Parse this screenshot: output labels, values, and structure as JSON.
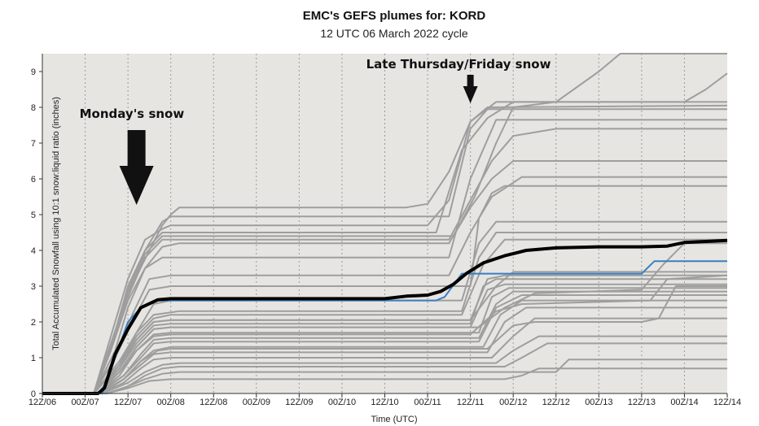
{
  "chart_data": {
    "type": "line",
    "title": "EMC's GEFS plumes for: KORD",
    "subtitle": "12 UTC 06 March 2022 cycle",
    "xlabel": "Time (UTC)",
    "ylabel": "Total Accumulated Snowfall using 10:1 snow:liquid ratio (inches)",
    "x_tick_labels": [
      "12Z/06",
      "00Z/07",
      "12Z/07",
      "00Z/08",
      "12Z/08",
      "00Z/09",
      "12Z/09",
      "00Z/10",
      "12Z/10",
      "00Z/11",
      "12Z/11",
      "00Z/12",
      "12Z/12",
      "00Z/13",
      "12Z/13",
      "00Z/14",
      "12Z/14"
    ],
    "y_ticks": [
      0,
      1,
      2,
      3,
      4,
      5,
      6,
      7,
      8,
      9
    ],
    "xlim": [
      0,
      16
    ],
    "ylim": [
      0,
      9.5
    ],
    "grid": "vertical dotted",
    "annotations": [
      {
        "text": "Monday's snow",
        "x": 2.2,
        "arrow_to": [
          2.2,
          5.3
        ]
      },
      {
        "text": "Late Thursday/Friday snow",
        "x": 10.0,
        "arrow_to": [
          10.0,
          8.1
        ]
      }
    ],
    "members_color": "#9e9e9e",
    "mean_color": "#000000",
    "control_color": "#3a7fc1",
    "members": [
      [
        [
          0,
          0
        ],
        [
          1.2,
          0
        ],
        [
          1.6,
          1.6
        ],
        [
          2.0,
          3.2
        ],
        [
          2.4,
          4.3
        ],
        [
          2.8,
          4.6
        ],
        [
          3.0,
          4.7
        ],
        [
          9.0,
          4.7
        ],
        [
          9.5,
          5.4
        ],
        [
          10.0,
          7.6
        ],
        [
          10.6,
          8.15
        ],
        [
          16,
          8.15
        ]
      ],
      [
        [
          0,
          0
        ],
        [
          1.2,
          0
        ],
        [
          1.6,
          1.2
        ],
        [
          2.0,
          2.8
        ],
        [
          2.5,
          4.0
        ],
        [
          2.8,
          4.7
        ],
        [
          3.0,
          5.0
        ],
        [
          3.2,
          5.2
        ],
        [
          8.5,
          5.2
        ],
        [
          9.0,
          5.3
        ],
        [
          9.5,
          6.2
        ],
        [
          10.0,
          7.6
        ],
        [
          10.4,
          8.0
        ],
        [
          16,
          8.05
        ]
      ],
      [
        [
          0,
          0
        ],
        [
          1.2,
          0
        ],
        [
          1.6,
          1.3
        ],
        [
          2.0,
          3.0
        ],
        [
          2.4,
          4.0
        ],
        [
          2.8,
          4.8
        ],
        [
          3.0,
          4.95
        ],
        [
          9.5,
          4.95
        ],
        [
          10.0,
          7.4
        ],
        [
          10.4,
          7.95
        ],
        [
          16,
          7.95
        ]
      ],
      [
        [
          0,
          0
        ],
        [
          1.2,
          0
        ],
        [
          1.6,
          1.2
        ],
        [
          2.0,
          2.9
        ],
        [
          2.4,
          4.0
        ],
        [
          2.8,
          4.5
        ],
        [
          9.2,
          4.5
        ],
        [
          9.8,
          6.8
        ],
        [
          10.4,
          7.7
        ],
        [
          11,
          8.15
        ],
        [
          12,
          8.15
        ],
        [
          13,
          9.0
        ],
        [
          13.5,
          9.5
        ],
        [
          16,
          9.5
        ]
      ],
      [
        [
          0,
          0
        ],
        [
          1.2,
          0
        ],
        [
          1.6,
          1.2
        ],
        [
          2.0,
          2.6
        ],
        [
          2.4,
          3.5
        ],
        [
          2.8,
          3.8
        ],
        [
          9.5,
          3.8
        ],
        [
          10.0,
          6.0
        ],
        [
          10.6,
          7.65
        ],
        [
          16,
          7.65
        ]
      ],
      [
        [
          0,
          0
        ],
        [
          1.2,
          0
        ],
        [
          1.7,
          1.2
        ],
        [
          2.0,
          2.4
        ],
        [
          2.4,
          3.5
        ],
        [
          2.8,
          4.1
        ],
        [
          3.2,
          4.2
        ],
        [
          9.5,
          4.2
        ],
        [
          10.0,
          5.2
        ],
        [
          10.5,
          6.0
        ],
        [
          11.0,
          6.5
        ],
        [
          16,
          6.5
        ]
      ],
      [
        [
          0,
          0
        ],
        [
          1.2,
          0
        ],
        [
          1.7,
          1.0
        ],
        [
          2.1,
          2.2
        ],
        [
          2.5,
          3.2
        ],
        [
          3.0,
          3.3
        ],
        [
          9.5,
          3.3
        ],
        [
          10.0,
          4.5
        ],
        [
          10.5,
          5.5
        ],
        [
          11.2,
          6.05
        ],
        [
          16,
          6.05
        ]
      ],
      [
        [
          0,
          0
        ],
        [
          1.2,
          0
        ],
        [
          1.7,
          1.0
        ],
        [
          2.1,
          2.0
        ],
        [
          2.5,
          2.9
        ],
        [
          3.0,
          3.0
        ],
        [
          10.0,
          3.0
        ],
        [
          10.2,
          4.9
        ],
        [
          10.5,
          5.6
        ],
        [
          10.8,
          5.8
        ],
        [
          16,
          5.8
        ]
      ],
      [
        [
          0,
          0
        ],
        [
          1.2,
          0
        ],
        [
          1.8,
          0.9
        ],
        [
          2.2,
          1.7
        ],
        [
          2.6,
          2.5
        ],
        [
          3.0,
          2.6
        ],
        [
          9.8,
          2.6
        ],
        [
          10.2,
          4.2
        ],
        [
          10.6,
          4.8
        ],
        [
          16,
          4.8
        ]
      ],
      [
        [
          0,
          0
        ],
        [
          1.2,
          0
        ],
        [
          1.8,
          0.8
        ],
        [
          2.2,
          1.7
        ],
        [
          2.6,
          2.2
        ],
        [
          3.2,
          2.3
        ],
        [
          9.8,
          2.3
        ],
        [
          10.2,
          3.8
        ],
        [
          10.6,
          4.5
        ],
        [
          16,
          4.5
        ]
      ],
      [
        [
          0,
          0
        ],
        [
          1.2,
          0
        ],
        [
          1.8,
          0.8
        ],
        [
          2.2,
          1.6
        ],
        [
          2.6,
          2.1
        ],
        [
          3.0,
          2.2
        ],
        [
          9.8,
          2.2
        ],
        [
          10.3,
          3.6
        ],
        [
          10.8,
          4.3
        ],
        [
          16,
          4.3
        ]
      ],
      [
        [
          0,
          0
        ],
        [
          1.3,
          0
        ],
        [
          1.8,
          0.8
        ],
        [
          2.2,
          1.5
        ],
        [
          2.6,
          2.0
        ],
        [
          3.0,
          2.05
        ],
        [
          10.0,
          2.05
        ],
        [
          10.4,
          3.2
        ],
        [
          10.8,
          3.3
        ],
        [
          16,
          3.3
        ]
      ],
      [
        [
          0,
          0
        ],
        [
          1.3,
          0
        ],
        [
          1.8,
          0.7
        ],
        [
          2.2,
          1.4
        ],
        [
          2.6,
          1.9
        ],
        [
          3.0,
          1.95
        ],
        [
          10.0,
          1.95
        ],
        [
          10.3,
          3.0
        ],
        [
          10.6,
          3.2
        ],
        [
          16,
          3.2
        ]
      ],
      [
        [
          0,
          0
        ],
        [
          1.3,
          0
        ],
        [
          1.8,
          0.6
        ],
        [
          2.2,
          1.3
        ],
        [
          2.6,
          1.8
        ],
        [
          3.0,
          1.85
        ],
        [
          10.0,
          1.85
        ],
        [
          10.4,
          2.9
        ],
        [
          10.8,
          3.05
        ],
        [
          16,
          3.05
        ]
      ],
      [
        [
          0,
          0
        ],
        [
          1.3,
          0
        ],
        [
          1.8,
          0.6
        ],
        [
          2.2,
          1.2
        ],
        [
          2.6,
          1.65
        ],
        [
          3.0,
          1.7
        ],
        [
          10.2,
          1.7
        ],
        [
          10.5,
          2.7
        ],
        [
          10.9,
          2.95
        ],
        [
          16,
          2.95
        ]
      ],
      [
        [
          0,
          0
        ],
        [
          1.3,
          0
        ],
        [
          1.9,
          0.5
        ],
        [
          2.3,
          1.1
        ],
        [
          2.6,
          1.5
        ],
        [
          3.0,
          1.55
        ],
        [
          10.2,
          1.55
        ],
        [
          10.6,
          2.5
        ],
        [
          11.0,
          2.85
        ],
        [
          16,
          2.85
        ]
      ],
      [
        [
          0,
          0
        ],
        [
          1.3,
          0
        ],
        [
          1.9,
          0.5
        ],
        [
          2.3,
          1.0
        ],
        [
          2.6,
          1.4
        ],
        [
          3.0,
          1.45
        ],
        [
          10.2,
          1.45
        ],
        [
          10.6,
          2.4
        ],
        [
          11.2,
          2.75
        ],
        [
          16,
          2.75
        ]
      ],
      [
        [
          0,
          0
        ],
        [
          1.3,
          0
        ],
        [
          1.9,
          0.4
        ],
        [
          2.3,
          0.9
        ],
        [
          2.6,
          1.2
        ],
        [
          3.0,
          1.3
        ],
        [
          10.3,
          1.3
        ],
        [
          10.7,
          2.2
        ],
        [
          11.2,
          2.6
        ],
        [
          16,
          2.6
        ]
      ],
      [
        [
          0,
          0
        ],
        [
          1.4,
          0
        ],
        [
          1.9,
          0.4
        ],
        [
          2.3,
          0.8
        ],
        [
          2.6,
          1.1
        ],
        [
          3.0,
          1.15
        ],
        [
          10.4,
          1.15
        ],
        [
          10.8,
          2.0
        ],
        [
          11.3,
          2.4
        ],
        [
          16,
          2.4
        ]
      ],
      [
        [
          0,
          0
        ],
        [
          1.4,
          0
        ],
        [
          1.9,
          0.3
        ],
        [
          2.3,
          0.7
        ],
        [
          2.6,
          0.95
        ],
        [
          3.0,
          1.0
        ],
        [
          10.5,
          1.0
        ],
        [
          11.0,
          1.6
        ],
        [
          11.5,
          2.1
        ],
        [
          16,
          2.1
        ]
      ],
      [
        [
          0,
          0
        ],
        [
          1.4,
          0
        ],
        [
          2.0,
          0.3
        ],
        [
          2.4,
          0.6
        ],
        [
          2.8,
          0.8
        ],
        [
          3.2,
          0.85
        ],
        [
          10.6,
          0.85
        ],
        [
          11.0,
          1.2
        ],
        [
          11.6,
          1.6
        ],
        [
          16,
          1.6
        ]
      ],
      [
        [
          0,
          0
        ],
        [
          1.5,
          0
        ],
        [
          2.0,
          0.2
        ],
        [
          2.4,
          0.5
        ],
        [
          2.8,
          0.7
        ],
        [
          3.2,
          0.75
        ],
        [
          10.8,
          0.75
        ],
        [
          11.2,
          1.0
        ],
        [
          11.8,
          1.4
        ],
        [
          16,
          1.4
        ]
      ],
      [
        [
          0,
          0
        ],
        [
          1.5,
          0
        ],
        [
          2.0,
          0.2
        ],
        [
          2.4,
          0.4
        ],
        [
          2.8,
          0.55
        ],
        [
          3.2,
          0.6
        ],
        [
          12.0,
          0.6
        ],
        [
          12.3,
          0.95
        ],
        [
          16,
          0.95
        ]
      ],
      [
        [
          0,
          0
        ],
        [
          1.5,
          0
        ],
        [
          2.0,
          0.15
        ],
        [
          2.5,
          0.35
        ],
        [
          3.0,
          0.4
        ],
        [
          10.8,
          0.4
        ],
        [
          11.2,
          0.5
        ],
        [
          11.6,
          0.7
        ],
        [
          16,
          0.7
        ]
      ],
      [
        [
          0,
          0
        ],
        [
          1.2,
          0
        ],
        [
          1.6,
          1.3
        ],
        [
          2.0,
          2.7
        ],
        [
          2.4,
          3.8
        ],
        [
          2.8,
          4.3
        ],
        [
          9.5,
          4.3
        ],
        [
          10.0,
          5.4
        ],
        [
          10.5,
          6.5
        ],
        [
          11.0,
          7.2
        ],
        [
          12.0,
          7.4
        ],
        [
          16,
          7.4
        ]
      ],
      [
        [
          0,
          0
        ],
        [
          1.2,
          0
        ],
        [
          1.6,
          1.4
        ],
        [
          2.0,
          2.8
        ],
        [
          2.4,
          3.9
        ],
        [
          2.8,
          4.4
        ],
        [
          9.6,
          4.4
        ],
        [
          10.1,
          5.5
        ],
        [
          10.6,
          7.0
        ],
        [
          11.0,
          8.0
        ],
        [
          12.0,
          8.15
        ],
        [
          15.0,
          8.15
        ],
        [
          15.5,
          8.5
        ],
        [
          16,
          8.95
        ]
      ],
      [
        [
          0,
          0
        ],
        [
          1.3,
          0
        ],
        [
          1.8,
          0.6
        ],
        [
          2.2,
          1.3
        ],
        [
          2.6,
          1.8
        ],
        [
          3.0,
          1.85
        ],
        [
          10.2,
          1.85
        ],
        [
          10.8,
          2.4
        ],
        [
          11.5,
          2.8
        ],
        [
          14.0,
          2.9
        ],
        [
          14.5,
          3.6
        ],
        [
          15.0,
          4.2
        ],
        [
          16,
          4.2
        ]
      ],
      [
        [
          0,
          0
        ],
        [
          1.3,
          0
        ],
        [
          1.8,
          0.7
        ],
        [
          2.2,
          1.5
        ],
        [
          2.6,
          2.0
        ],
        [
          3.0,
          2.05
        ],
        [
          10.0,
          2.05
        ],
        [
          10.6,
          3.0
        ],
        [
          11.0,
          3.4
        ],
        [
          16,
          3.4
        ]
      ],
      [
        [
          0,
          0
        ],
        [
          1.3,
          0
        ],
        [
          1.8,
          0.5
        ],
        [
          2.2,
          1.2
        ],
        [
          2.6,
          1.6
        ],
        [
          3.0,
          1.65
        ],
        [
          10.0,
          1.65
        ],
        [
          10.6,
          2.3
        ],
        [
          11.2,
          2.5
        ],
        [
          14.2,
          2.6
        ],
        [
          14.6,
          3.2
        ],
        [
          16,
          3.3
        ]
      ],
      [
        [
          0,
          0
        ],
        [
          1.4,
          0
        ],
        [
          1.9,
          0.4
        ],
        [
          2.3,
          0.9
        ],
        [
          2.7,
          1.2
        ],
        [
          3.0,
          1.25
        ],
        [
          10.4,
          1.25
        ],
        [
          11.0,
          1.9
        ],
        [
          11.5,
          2.0
        ],
        [
          14.0,
          2.0
        ],
        [
          14.4,
          2.1
        ],
        [
          14.8,
          3.0
        ],
        [
          16,
          3.0
        ]
      ]
    ],
    "control": [
      [
        0,
        0
      ],
      [
        1.4,
        0
      ],
      [
        1.7,
        1.0
      ],
      [
        2.0,
        2.0
      ],
      [
        2.3,
        2.4
      ],
      [
        2.7,
        2.6
      ],
      [
        9.0,
        2.6
      ],
      [
        9.2,
        2.6
      ],
      [
        9.4,
        2.7
      ],
      [
        9.8,
        3.35
      ],
      [
        14.0,
        3.35
      ],
      [
        14.3,
        3.7
      ],
      [
        16,
        3.7
      ]
    ],
    "mean": [
      [
        0,
        0
      ],
      [
        1.3,
        0
      ],
      [
        1.45,
        0.15
      ],
      [
        1.7,
        1.1
      ],
      [
        2.0,
        1.8
      ],
      [
        2.3,
        2.4
      ],
      [
        2.7,
        2.62
      ],
      [
        3.0,
        2.65
      ],
      [
        8.0,
        2.65
      ],
      [
        8.5,
        2.72
      ],
      [
        9.0,
        2.75
      ],
      [
        9.3,
        2.85
      ],
      [
        9.6,
        3.05
      ],
      [
        9.9,
        3.35
      ],
      [
        10.3,
        3.65
      ],
      [
        10.8,
        3.85
      ],
      [
        11.3,
        4.0
      ],
      [
        12.0,
        4.07
      ],
      [
        13.0,
        4.1
      ],
      [
        14.0,
        4.1
      ],
      [
        14.6,
        4.12
      ],
      [
        15.0,
        4.22
      ],
      [
        16,
        4.28
      ]
    ]
  }
}
